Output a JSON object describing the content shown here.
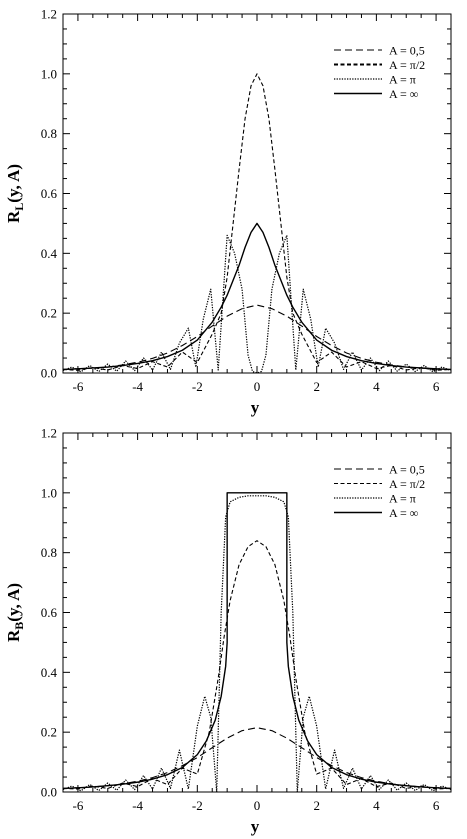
{
  "chart_data": [
    {
      "type": "line",
      "ylabel_main": "R",
      "ylabel_sub": "L",
      "ylabel_tail": "(y, A)",
      "xlabel": "y",
      "xlim": [
        -6.5,
        6.5
      ],
      "ylim": [
        0,
        1.2
      ],
      "xticks": [
        -6,
        -4,
        -2,
        0,
        2,
        4,
        6
      ],
      "xtick_labels": [
        "-6",
        "-4",
        "-2",
        "0",
        "2",
        "4",
        "6"
      ],
      "yticks": [
        0,
        0.2,
        0.4,
        0.6,
        0.8,
        1.0,
        1.2
      ],
      "ytick_labels": [
        "0.0",
        "0.2",
        "0.4",
        "0.6",
        "0.8",
        "1.0",
        "1.2"
      ],
      "grid": false,
      "legend_position": "top-right",
      "series": [
        {
          "name": "A = 0,5",
          "style": "dashed",
          "x": [
            -6.5,
            -6,
            -5.5,
            -5,
            -4.5,
            -4,
            -3.5,
            -3,
            -2.5,
            -2,
            -1.5,
            -1,
            -0.5,
            0,
            0.5,
            1,
            1.5,
            2,
            2.5,
            3,
            3.5,
            4,
            4.5,
            5,
            5.5,
            6,
            6.5
          ],
          "y": [
            0.012,
            0.014,
            0.016,
            0.02,
            0.027,
            0.036,
            0.049,
            0.067,
            0.092,
            0.122,
            0.157,
            0.19,
            0.215,
            0.227,
            0.215,
            0.19,
            0.157,
            0.122,
            0.092,
            0.067,
            0.049,
            0.036,
            0.027,
            0.02,
            0.016,
            0.014,
            0.012
          ]
        },
        {
          "name": "A = π/2",
          "style": "short-dashed",
          "x": [
            -6.5,
            -6,
            -5.5,
            -5,
            -4.5,
            -4,
            -3.5,
            -3,
            -2.5,
            -2,
            -1.5,
            -1.2,
            -1,
            -0.8,
            -0.6,
            -0.4,
            -0.2,
            0,
            0.2,
            0.4,
            0.6,
            0.8,
            1,
            1.2,
            1.5,
            2,
            2.5,
            3,
            3.5,
            4,
            4.5,
            5,
            5.5,
            6,
            6.5
          ],
          "y": [
            0.012,
            0.009,
            0.018,
            0.01,
            0.025,
            0.015,
            0.038,
            0.02,
            0.07,
            0.035,
            0.13,
            0.2,
            0.32,
            0.5,
            0.68,
            0.85,
            0.96,
            1.0,
            0.96,
            0.85,
            0.68,
            0.5,
            0.32,
            0.2,
            0.13,
            0.035,
            0.07,
            0.02,
            0.038,
            0.015,
            0.025,
            0.01,
            0.018,
            0.009,
            0.012
          ]
        },
        {
          "name": "A = π",
          "style": "dotted",
          "x": [
            -6.5,
            -6.2,
            -5.9,
            -5.6,
            -5.3,
            -5.0,
            -4.7,
            -4.4,
            -4.1,
            -3.8,
            -3.5,
            -3.2,
            -2.9,
            -2.6,
            -2.3,
            -2.05,
            -1.8,
            -1.55,
            -1.3,
            -1.0,
            -0.75,
            -0.5,
            -0.3,
            -0.15,
            0,
            0.15,
            0.3,
            0.5,
            0.75,
            1.0,
            1.3,
            1.55,
            1.8,
            2.05,
            2.3,
            2.6,
            2.9,
            3.2,
            3.5,
            3.8,
            4.1,
            4.4,
            4.7,
            5.0,
            5.3,
            5.6,
            5.9,
            6.2,
            6.5
          ],
          "y": [
            0.008,
            0.02,
            0.004,
            0.025,
            0.005,
            0.03,
            0.006,
            0.04,
            0.008,
            0.05,
            0.01,
            0.07,
            0.012,
            0.1,
            0.15,
            0.02,
            0.18,
            0.28,
            0.01,
            0.46,
            0.4,
            0.28,
            0.06,
            0.005,
            0.0,
            0.005,
            0.06,
            0.28,
            0.4,
            0.46,
            0.01,
            0.28,
            0.18,
            0.02,
            0.15,
            0.1,
            0.012,
            0.07,
            0.01,
            0.05,
            0.008,
            0.04,
            0.006,
            0.03,
            0.005,
            0.025,
            0.004,
            0.02,
            0.008
          ]
        },
        {
          "name": "A = ∞",
          "style": "solid",
          "x": [
            -6.5,
            -6,
            -5.5,
            -5,
            -4.5,
            -4,
            -3.5,
            -3,
            -2.5,
            -2,
            -1.5,
            -1.2,
            -1,
            -0.8,
            -0.6,
            -0.4,
            -0.2,
            0,
            0.2,
            0.4,
            0.6,
            0.8,
            1,
            1.2,
            1.5,
            2,
            2.5,
            3,
            3.5,
            4,
            4.5,
            5,
            5.5,
            6,
            6.5
          ],
          "y": [
            0.012,
            0.014,
            0.017,
            0.02,
            0.025,
            0.032,
            0.041,
            0.055,
            0.076,
            0.11,
            0.17,
            0.22,
            0.26,
            0.31,
            0.36,
            0.42,
            0.47,
            0.5,
            0.47,
            0.42,
            0.36,
            0.31,
            0.26,
            0.22,
            0.17,
            0.11,
            0.076,
            0.055,
            0.041,
            0.032,
            0.025,
            0.02,
            0.017,
            0.014,
            0.012
          ]
        }
      ]
    },
    {
      "type": "line",
      "ylabel_main": "R",
      "ylabel_sub": "B",
      "ylabel_tail": "(y, A)",
      "xlabel": "y",
      "xlim": [
        -6.5,
        6.5
      ],
      "ylim": [
        0,
        1.2
      ],
      "xticks": [
        -6,
        -4,
        -2,
        0,
        2,
        4,
        6
      ],
      "xtick_labels": [
        "-6",
        "-4",
        "-2",
        "0",
        "2",
        "4",
        "6"
      ],
      "yticks": [
        0,
        0.2,
        0.4,
        0.6,
        0.8,
        1.0,
        1.2
      ],
      "ytick_labels": [
        "0.0",
        "0.2",
        "0.4",
        "0.6",
        "0.8",
        "1.0",
        "1.2"
      ],
      "grid": false,
      "legend_position": "top-right",
      "series": [
        {
          "name": "A = 0,5",
          "style": "dashed",
          "x": [
            -6.5,
            -6,
            -5.5,
            -5,
            -4.5,
            -4,
            -3.5,
            -3,
            -2.5,
            -2,
            -1.5,
            -1,
            -0.5,
            0,
            0.5,
            1,
            1.5,
            2,
            2.5,
            3,
            3.5,
            4,
            4.5,
            5,
            5.5,
            6,
            6.5
          ],
          "y": [
            0.012,
            0.014,
            0.017,
            0.021,
            0.027,
            0.036,
            0.048,
            0.065,
            0.088,
            0.115,
            0.148,
            0.18,
            0.205,
            0.215,
            0.205,
            0.18,
            0.148,
            0.115,
            0.088,
            0.065,
            0.048,
            0.036,
            0.027,
            0.021,
            0.017,
            0.014,
            0.012
          ]
        },
        {
          "name": "A = π/2",
          "style": "short-dashed",
          "x": [
            -6.5,
            -6,
            -5.5,
            -5,
            -4.5,
            -4,
            -3.5,
            -3,
            -2.5,
            -2,
            -1.6,
            -1.3,
            -1.1,
            -0.9,
            -0.6,
            -0.3,
            0,
            0.3,
            0.6,
            0.9,
            1.1,
            1.3,
            1.6,
            2,
            2.5,
            3,
            3.5,
            4,
            4.5,
            5,
            5.5,
            6,
            6.5
          ],
          "y": [
            0.012,
            0.01,
            0.02,
            0.012,
            0.03,
            0.018,
            0.045,
            0.025,
            0.08,
            0.06,
            0.2,
            0.38,
            0.52,
            0.64,
            0.76,
            0.82,
            0.84,
            0.82,
            0.76,
            0.64,
            0.52,
            0.38,
            0.2,
            0.06,
            0.08,
            0.025,
            0.045,
            0.018,
            0.03,
            0.012,
            0.02,
            0.01,
            0.012
          ]
        },
        {
          "name": "A = π",
          "style": "dotted",
          "x": [
            -6.5,
            -6.2,
            -5.9,
            -5.6,
            -5.3,
            -5.0,
            -4.7,
            -4.4,
            -4.1,
            -3.8,
            -3.5,
            -3.2,
            -2.9,
            -2.6,
            -2.3,
            -2.0,
            -1.75,
            -1.55,
            -1.35,
            -1.2,
            -1.05,
            -0.9,
            -0.6,
            -0.3,
            0,
            0.3,
            0.6,
            0.9,
            1.05,
            1.2,
            1.35,
            1.55,
            1.75,
            2.0,
            2.3,
            2.6,
            2.9,
            3.2,
            3.5,
            3.8,
            4.1,
            4.4,
            4.7,
            5.0,
            5.3,
            5.6,
            5.9,
            6.2,
            6.5
          ],
          "y": [
            0.008,
            0.02,
            0.004,
            0.025,
            0.005,
            0.03,
            0.006,
            0.04,
            0.008,
            0.055,
            0.01,
            0.08,
            0.012,
            0.14,
            0.01,
            0.22,
            0.32,
            0.25,
            0.0,
            0.6,
            0.92,
            0.97,
            0.985,
            0.99,
            0.99,
            0.99,
            0.985,
            0.97,
            0.92,
            0.6,
            0.0,
            0.25,
            0.32,
            0.22,
            0.01,
            0.14,
            0.012,
            0.08,
            0.01,
            0.055,
            0.008,
            0.04,
            0.006,
            0.03,
            0.005,
            0.025,
            0.004,
            0.02,
            0.008
          ]
        },
        {
          "name": "A = ∞",
          "style": "solid",
          "x": [
            -6.5,
            -6,
            -5.5,
            -5,
            -4.5,
            -4,
            -3.5,
            -3,
            -2.5,
            -2,
            -1.7,
            -1.4,
            -1.2,
            -1.05,
            -1.0,
            -1.0,
            1.0,
            1.0,
            1.05,
            1.2,
            1.4,
            1.7,
            2,
            2.5,
            3,
            3.5,
            4,
            4.5,
            5,
            5.5,
            6,
            6.5
          ],
          "y": [
            0.012,
            0.014,
            0.017,
            0.021,
            0.026,
            0.033,
            0.043,
            0.058,
            0.082,
            0.125,
            0.17,
            0.24,
            0.32,
            0.42,
            0.5,
            1.0,
            1.0,
            0.5,
            0.42,
            0.32,
            0.24,
            0.17,
            0.125,
            0.082,
            0.058,
            0.043,
            0.033,
            0.026,
            0.021,
            0.017,
            0.014,
            0.012
          ]
        }
      ]
    }
  ]
}
